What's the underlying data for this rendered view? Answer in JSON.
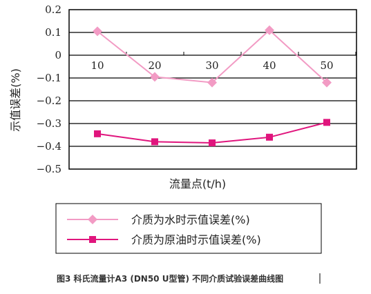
{
  "chart_data": {
    "type": "line",
    "categories": [
      "10",
      "20",
      "30",
      "40",
      "50"
    ],
    "ylim": [
      -0.5,
      0.2
    ],
    "yticks": [
      "0.2",
      "0.1",
      "0",
      "−0.1",
      "−0.2",
      "−0.3",
      "−0.4",
      "−0.5"
    ],
    "ytick_values": [
      0.2,
      0.1,
      0,
      -0.1,
      -0.2,
      -0.3,
      -0.4,
      -0.5
    ],
    "xlabel": "流量点(t/h)",
    "ylabel": "示值误差(%)",
    "grid": "horizontal",
    "legend_position": "bottom",
    "series": [
      {
        "name": "介质为水时示值误差(%)",
        "color": "#f29bc4",
        "marker": "diamond",
        "values": [
          0.105,
          -0.095,
          -0.12,
          0.11,
          -0.12
        ]
      },
      {
        "name": "介质为原油时示值误差(%)",
        "color": "#e0157d",
        "marker": "square",
        "values": [
          -0.345,
          -0.38,
          -0.385,
          -0.36,
          -0.295
        ]
      }
    ]
  },
  "caption": "图3 科氏流量计A3 (DN50 U型管) 不同介质试验误差曲线图"
}
